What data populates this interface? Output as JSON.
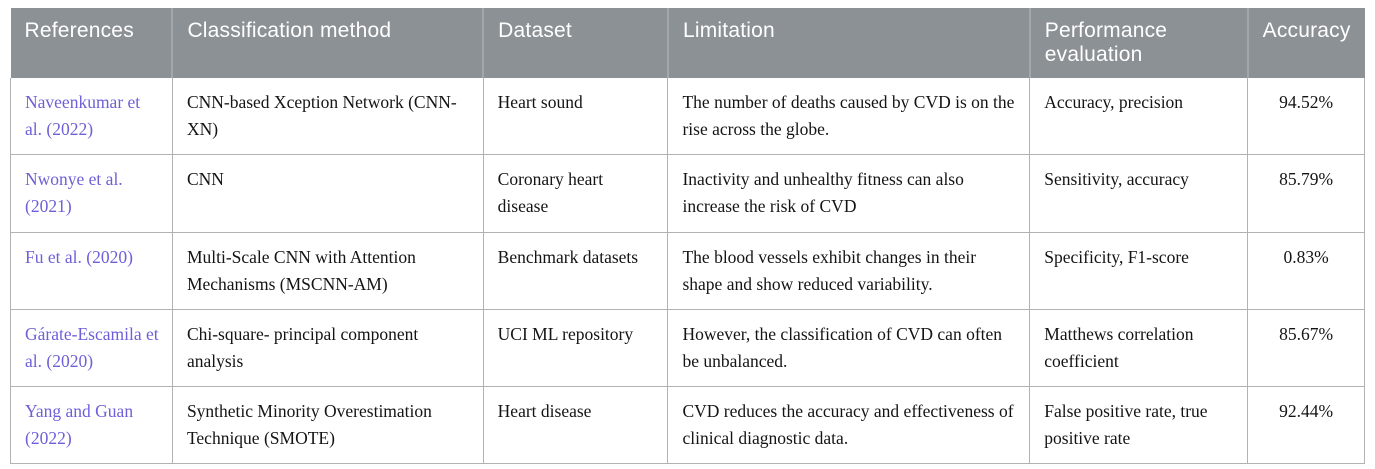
{
  "table": {
    "columns": [
      "References",
      "Classification method",
      "Dataset",
      "Limitation",
      "Performance evaluation",
      "Accuracy"
    ],
    "rows": [
      {
        "reference": "Naveenkumar et al. (2022)",
        "method": "CNN-based Xception Network (CNN-XN)",
        "dataset": "Heart sound",
        "limitation": "The number of deaths caused by CVD is on the rise across the globe.",
        "performance": "Accuracy, precision",
        "accuracy": "94.52%"
      },
      {
        "reference": "Nwonye et al. (2021)",
        "method": "CNN",
        "dataset": "Coronary heart disease",
        "limitation": "Inactivity and unhealthy fitness can also increase the risk of CVD",
        "performance": "Sensitivity, accuracy",
        "accuracy": "85.79%"
      },
      {
        "reference": "Fu et al. (2020)",
        "method": "Multi-Scale CNN with Attention Mechanisms (MSCNN-AM)",
        "dataset": "Benchmark datasets",
        "limitation": "The blood vessels exhibit changes in their shape and show reduced variability.",
        "performance": "Specificity, F1-score",
        "accuracy": "0.83%"
      },
      {
        "reference": "Gárate-Escamila et al. (2020)",
        "method": "Chi-square- principal component analysis",
        "dataset": "UCI ML repository",
        "limitation": "However, the classification of CVD can often be unbalanced.",
        "performance": "Matthews correlation coefficient",
        "accuracy": "85.67%"
      },
      {
        "reference": "Yang and Guan (2022)",
        "method": "Synthetic Minority Overestimation Technique (SMOTE)",
        "dataset": "Heart disease",
        "limitation": "CVD reduces the accuracy and effectiveness of clinical diagnostic data.",
        "performance": "False positive rate, true positive rate",
        "accuracy": "92.44%"
      }
    ],
    "colors": {
      "header_bg": "#8c9196",
      "header_text": "#ffffff",
      "link": "#6e5fd8",
      "border": "#b2b2b2",
      "body_text": "#141414"
    }
  }
}
